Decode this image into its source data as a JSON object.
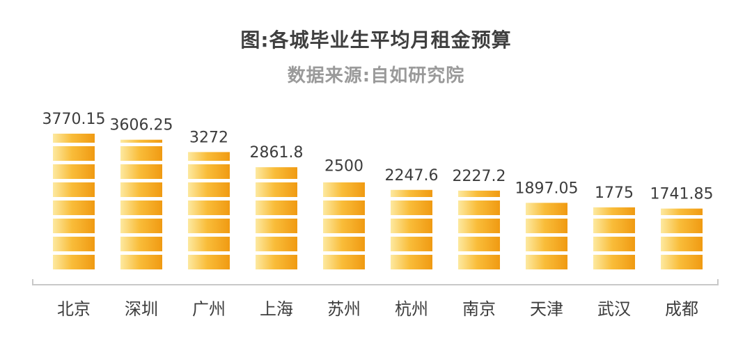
{
  "header": {
    "title": "图:各城毕业生平均月租金预算",
    "subtitle": "数据来源:自如研究院"
  },
  "colors": {
    "coin_light": "#fde9a0",
    "coin_mid": "#f9bd3a",
    "coin_dark": "#f09a12",
    "value_text": "#3c3c3c",
    "category_text": "#3c3c3c",
    "axis": "#c8c8c8"
  },
  "chart_data": {
    "type": "bar",
    "categories": [
      "北京",
      "深圳",
      "广州",
      "上海",
      "苏州",
      "杭州",
      "南京",
      "天津",
      "武汉",
      "成都"
    ],
    "values": [
      3770.15,
      3606.25,
      3272,
      2861.8,
      2500,
      2247.6,
      2227.2,
      1897.05,
      1775,
      1741.85
    ],
    "value_labels": [
      "3770.15",
      "3606.25",
      "3272",
      "2861.8",
      "2500",
      "2247.6",
      "2227.2",
      "1897.05",
      "1775",
      "1741.85"
    ],
    "title": "图:各城毕业生平均月租金预算",
    "subtitle": "数据来源:自如研究院",
    "xlabel": "",
    "ylabel": "",
    "ylim": [
      0,
      4000
    ],
    "grid": false,
    "legend": "none",
    "bar_style": "stacked-coins"
  }
}
